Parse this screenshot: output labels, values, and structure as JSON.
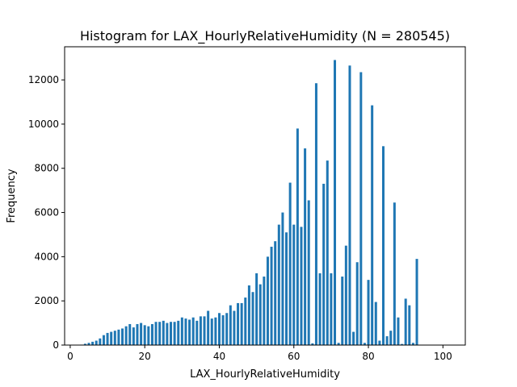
{
  "chart_data": {
    "type": "bar",
    "title": "Histogram for LAX_HourlyRelativeHumidity (N = 280545)",
    "xlabel": "LAX_HourlyRelativeHumidity",
    "ylabel": "Frequency",
    "xlim": [
      -1.5,
      106
    ],
    "ylim": [
      0,
      13500
    ],
    "xticks": [
      0,
      20,
      40,
      60,
      80,
      100
    ],
    "yticks": [
      0,
      2000,
      4000,
      6000,
      8000,
      10000,
      12000
    ],
    "bar_color": "#1f77b4",
    "grid": false,
    "bars": [
      {
        "x": 3,
        "y": 20
      },
      {
        "x": 4,
        "y": 60
      },
      {
        "x": 5,
        "y": 100
      },
      {
        "x": 6,
        "y": 150
      },
      {
        "x": 7,
        "y": 200
      },
      {
        "x": 8,
        "y": 300
      },
      {
        "x": 9,
        "y": 450
      },
      {
        "x": 10,
        "y": 550
      },
      {
        "x": 11,
        "y": 600
      },
      {
        "x": 12,
        "y": 650
      },
      {
        "x": 13,
        "y": 700
      },
      {
        "x": 14,
        "y": 750
      },
      {
        "x": 15,
        "y": 850
      },
      {
        "x": 16,
        "y": 950
      },
      {
        "x": 17,
        "y": 800
      },
      {
        "x": 18,
        "y": 950
      },
      {
        "x": 19,
        "y": 1000
      },
      {
        "x": 20,
        "y": 900
      },
      {
        "x": 21,
        "y": 850
      },
      {
        "x": 22,
        "y": 950
      },
      {
        "x": 23,
        "y": 1050
      },
      {
        "x": 24,
        "y": 1050
      },
      {
        "x": 25,
        "y": 1100
      },
      {
        "x": 26,
        "y": 1000
      },
      {
        "x": 27,
        "y": 1050
      },
      {
        "x": 28,
        "y": 1050
      },
      {
        "x": 29,
        "y": 1100
      },
      {
        "x": 30,
        "y": 1250
      },
      {
        "x": 31,
        "y": 1200
      },
      {
        "x": 32,
        "y": 1150
      },
      {
        "x": 33,
        "y": 1250
      },
      {
        "x": 34,
        "y": 1100
      },
      {
        "x": 35,
        "y": 1300
      },
      {
        "x": 36,
        "y": 1300
      },
      {
        "x": 37,
        "y": 1550
      },
      {
        "x": 38,
        "y": 1200
      },
      {
        "x": 39,
        "y": 1250
      },
      {
        "x": 40,
        "y": 1450
      },
      {
        "x": 41,
        "y": 1350
      },
      {
        "x": 42,
        "y": 1450
      },
      {
        "x": 43,
        "y": 1800
      },
      {
        "x": 44,
        "y": 1550
      },
      {
        "x": 45,
        "y": 1900
      },
      {
        "x": 46,
        "y": 1900
      },
      {
        "x": 47,
        "y": 2150
      },
      {
        "x": 48,
        "y": 2700
      },
      {
        "x": 49,
        "y": 2400
      },
      {
        "x": 50,
        "y": 3250
      },
      {
        "x": 51,
        "y": 2750
      },
      {
        "x": 52,
        "y": 3100
      },
      {
        "x": 53,
        "y": 4000
      },
      {
        "x": 54,
        "y": 4450
      },
      {
        "x": 55,
        "y": 4700
      },
      {
        "x": 56,
        "y": 5450
      },
      {
        "x": 57,
        "y": 6000
      },
      {
        "x": 58,
        "y": 5100
      },
      {
        "x": 59,
        "y": 7350
      },
      {
        "x": 60,
        "y": 5450
      },
      {
        "x": 61,
        "y": 9800
      },
      {
        "x": 62,
        "y": 5350
      },
      {
        "x": 63,
        "y": 8900
      },
      {
        "x": 64,
        "y": 6550
      },
      {
        "x": 65,
        "y": 80
      },
      {
        "x": 66,
        "y": 11850
      },
      {
        "x": 67,
        "y": 3250
      },
      {
        "x": 68,
        "y": 7300
      },
      {
        "x": 69,
        "y": 8350
      },
      {
        "x": 70,
        "y": 3250
      },
      {
        "x": 71,
        "y": 12900
      },
      {
        "x": 72,
        "y": 100
      },
      {
        "x": 73,
        "y": 3100
      },
      {
        "x": 74,
        "y": 4500
      },
      {
        "x": 75,
        "y": 12650
      },
      {
        "x": 76,
        "y": 600
      },
      {
        "x": 77,
        "y": 3750
      },
      {
        "x": 78,
        "y": 12350
      },
      {
        "x": 79,
        "y": 100
      },
      {
        "x": 80,
        "y": 2950
      },
      {
        "x": 81,
        "y": 10850
      },
      {
        "x": 82,
        "y": 1950
      },
      {
        "x": 83,
        "y": 200
      },
      {
        "x": 84,
        "y": 9000
      },
      {
        "x": 85,
        "y": 400
      },
      {
        "x": 86,
        "y": 650
      },
      {
        "x": 87,
        "y": 6450
      },
      {
        "x": 88,
        "y": 1250
      },
      {
        "x": 89,
        "y": 50
      },
      {
        "x": 90,
        "y": 2100
      },
      {
        "x": 91,
        "y": 1800
      },
      {
        "x": 92,
        "y": 100
      },
      {
        "x": 93,
        "y": 3900
      }
    ]
  }
}
